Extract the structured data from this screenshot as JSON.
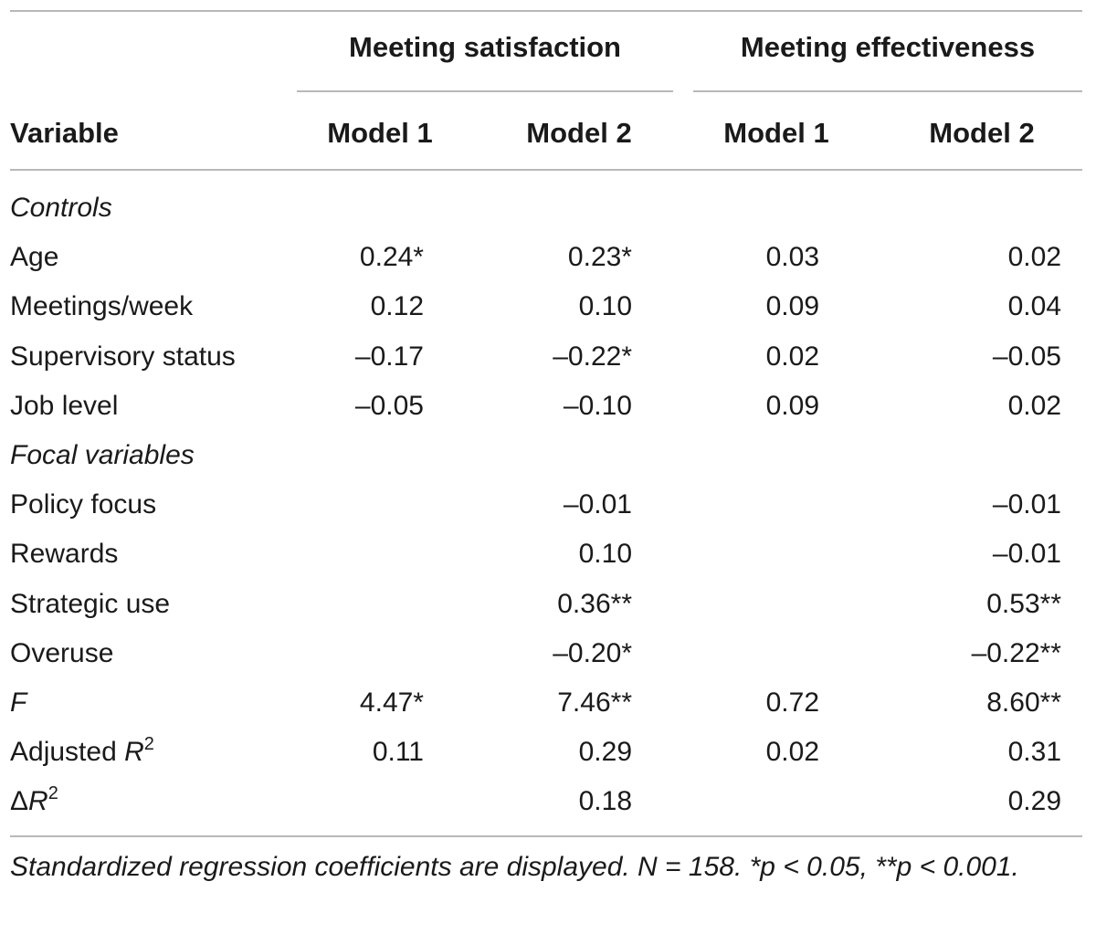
{
  "table": {
    "group_headers": [
      "Meeting satisfaction",
      "Meeting effectiveness"
    ],
    "col_headers": [
      "Variable",
      "Model 1",
      "Model 2",
      "Model 1",
      "Model 2"
    ],
    "sections": [
      {
        "title": "Controls",
        "rows": [
          {
            "label": "Age",
            "values": [
              "0.24*",
              "0.23*",
              "0.03",
              "0.02"
            ]
          },
          {
            "label": "Meetings/week",
            "values": [
              "0.12",
              "0.10",
              "0.09",
              "0.04"
            ]
          },
          {
            "label": "Supervisory status",
            "values": [
              "–0.17",
              "–0.22*",
              "0.02",
              "–0.05"
            ]
          },
          {
            "label": "Job level",
            "values": [
              "–0.05",
              "–0.10",
              "0.09",
              "0.02"
            ]
          }
        ]
      },
      {
        "title": "Focal variables",
        "rows": [
          {
            "label": "Policy focus",
            "values": [
              "",
              "–0.01",
              "",
              "–0.01"
            ]
          },
          {
            "label": "Rewards",
            "values": [
              "",
              "0.10",
              "",
              "–0.01"
            ]
          },
          {
            "label": "Strategic use",
            "values": [
              "",
              "0.36**",
              "",
              "0.53**"
            ]
          },
          {
            "label": "Overuse",
            "values": [
              "",
              "–0.20*",
              "",
              "–0.22**"
            ]
          }
        ]
      }
    ],
    "stats": [
      {
        "label": "F",
        "values": [
          "4.47*",
          "7.46**",
          "0.72",
          "8.60**"
        ]
      },
      {
        "label_main": "Adjusted ",
        "label_italic": "R",
        "label_sup": "2",
        "values": [
          "0.11",
          "0.29",
          "0.02",
          "0.31"
        ]
      },
      {
        "label_main": "Δ",
        "label_italic": "R",
        "label_sup": "2",
        "values": [
          "",
          "0.18",
          "",
          "0.29"
        ]
      }
    ],
    "note": "Standardized regression coefficients are displayed. N = 158. *p < 0.05, **p < 0.001."
  }
}
